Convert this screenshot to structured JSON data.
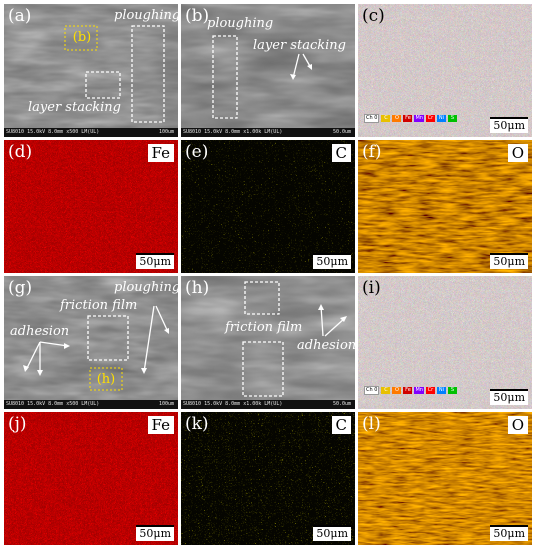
{
  "panels": {
    "a": {
      "label": "(a)",
      "annotations": [
        "ploughing",
        "layer stacking"
      ],
      "inset_label": "(b)",
      "sem": [
        "SU8010 15.0kV 8.0mm x500 LM(UL)",
        "100um"
      ]
    },
    "b": {
      "label": "(b)",
      "annotations": [
        "ploughing",
        "layer stacking"
      ],
      "sem": [
        "SU8010 15.0kV 8.0mm x1.00k LM(UL)",
        "50.0um"
      ]
    },
    "c": {
      "label": "(c)",
      "scale": "50μm",
      "legend": [
        "Ch 0",
        "C",
        "O",
        "Fe",
        "Mn",
        "Cr",
        "Ni",
        "S"
      ],
      "legend_colors": [
        "#ffffff",
        "#e8c000",
        "#ff7a00",
        "#d00000",
        "#8000ff",
        "#ff0000",
        "#0080ff",
        "#00c000"
      ]
    },
    "d": {
      "label": "(d)",
      "element": "Fe",
      "scale": "50μm",
      "color": "#d01010"
    },
    "e": {
      "label": "(e)",
      "element": "C",
      "scale": "50μm",
      "color": "#d8d000"
    },
    "f": {
      "label": "(f)",
      "element": "O",
      "scale": "50μm",
      "color": "#e07000"
    },
    "g": {
      "label": "(g)",
      "annotations": [
        "friction film",
        "ploughing",
        "adhesion"
      ],
      "inset_label": "(h)",
      "sem": [
        "SU8010 15.0kV 8.0mm x500 LM(UL)",
        "100um"
      ]
    },
    "h": {
      "label": "(h)",
      "annotations": [
        "friction film",
        "adhesion"
      ],
      "sem": [
        "SU8010 15.0kV 8.0mm x1.00k LM(UL)",
        "50.0um"
      ]
    },
    "i": {
      "label": "(i)",
      "scale": "50μm",
      "legend": [
        "Ch 0",
        "C",
        "O",
        "Fe",
        "Mn",
        "Cr",
        "Ni",
        "S"
      ],
      "legend_colors": [
        "#ffffff",
        "#e8c000",
        "#ff7a00",
        "#d00000",
        "#8000ff",
        "#ff0000",
        "#0080ff",
        "#00c000"
      ]
    },
    "j": {
      "label": "(j)",
      "element": "Fe",
      "scale": "50μm",
      "color": "#d01010"
    },
    "k": {
      "label": "(k)",
      "element": "C",
      "scale": "50μm",
      "color": "#d8d000"
    },
    "l": {
      "label": "(l)",
      "element": "O",
      "scale": "50μm",
      "color": "#e07000"
    }
  }
}
